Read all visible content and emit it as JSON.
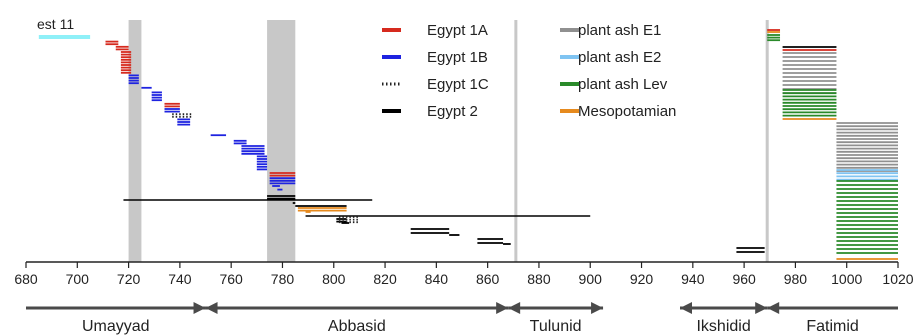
{
  "chart_data": {
    "type": "timeline-range",
    "xlabel": "",
    "ylabel": "",
    "xlim": [
      680,
      1020
    ],
    "x_ticks": [
      680,
      700,
      720,
      740,
      760,
      780,
      800,
      820,
      840,
      860,
      880,
      900,
      920,
      940,
      960,
      980,
      1000,
      1020
    ],
    "annotation": "est 11",
    "legend_position": "top-center",
    "legend": [
      {
        "name": "Egypt 1A",
        "color": "#d62a1e",
        "style": "solid"
      },
      {
        "name": "Egypt 1B",
        "color": "#1e23e0",
        "style": "solid"
      },
      {
        "name": "Egypt 1C",
        "color": "#222222",
        "style": "dotted"
      },
      {
        "name": "Egypt 2",
        "color": "#000000",
        "style": "solid"
      },
      {
        "name": "plant ash E1",
        "color": "#909090",
        "style": "solid"
      },
      {
        "name": "plant ash E2",
        "color": "#7fc4f2",
        "style": "solid"
      },
      {
        "name": "plant ash Lev",
        "color": "#2a8a2a",
        "style": "solid"
      },
      {
        "name": "Mesopotamian",
        "color": "#e68a1e",
        "style": "solid"
      }
    ],
    "colors": {
      "Egypt 1A": "#d62a1e",
      "Egypt 1B": "#1e23e0",
      "Egypt 1C": "#222222",
      "Egypt 2": "#000000",
      "plant ash E1": "#909090",
      "plant ash E2": "#7fc4f2",
      "plant ash Lev": "#2a8a2a",
      "Mesopotamian": "#e68a1e",
      "est 11": "#8ff0f8"
    },
    "shaded_ranges": [
      [
        720,
        725
      ],
      [
        774,
        785
      ]
    ],
    "reference_lines": [
      871,
      969
    ],
    "periods": [
      {
        "name": "Umayyad",
        "start": 680,
        "end": 750,
        "arrow_left": false,
        "arrow_right": true
      },
      {
        "name": "Abbasid",
        "start": 750,
        "end": 868,
        "arrow_left": true,
        "arrow_right": true
      },
      {
        "name": "Tulunid",
        "start": 868,
        "end": 905,
        "arrow_left": true,
        "arrow_right": true
      },
      {
        "name": "Ikshidid",
        "start": 935,
        "end": 969,
        "arrow_left": true,
        "arrow_right": true
      },
      {
        "name": "Fatimid",
        "start": 969,
        "end": 1020,
        "arrow_left": true,
        "arrow_right": false
      }
    ],
    "series": [
      {
        "name": "est 11",
        "start": 685,
        "end": 705,
        "count": 1,
        "group": "est 11"
      },
      {
        "name": "Egypt 1A",
        "start": 711,
        "end": 716,
        "count": 2,
        "group": "Egypt 1A"
      },
      {
        "name": "Egypt 1A",
        "start": 715,
        "end": 720,
        "count": 2,
        "group": "Egypt 1A"
      },
      {
        "name": "Egypt 1A",
        "start": 717,
        "end": 721,
        "count": 9,
        "group": "Egypt 1A"
      },
      {
        "name": "Egypt 1B",
        "start": 720,
        "end": 724,
        "count": 4,
        "group": "Egypt 1B"
      },
      {
        "name": "Egypt 1B",
        "start": 725,
        "end": 729,
        "count": 1,
        "group": "Egypt 1B"
      },
      {
        "name": "Egypt 1B",
        "start": 729,
        "end": 733,
        "count": 4,
        "group": "Egypt 1B"
      },
      {
        "name": "Egypt 1A",
        "start": 734,
        "end": 740,
        "count": 2,
        "group": "Egypt 1A"
      },
      {
        "name": "Egypt 1B",
        "start": 734,
        "end": 740,
        "count": 2,
        "group": "Egypt 1B"
      },
      {
        "name": "Egypt 1C",
        "start": 737,
        "end": 745,
        "count": 2,
        "group": "Egypt 1C"
      },
      {
        "name": "Egypt 1B",
        "start": 739,
        "end": 744,
        "count": 3,
        "group": "Egypt 1B"
      },
      {
        "name": "Egypt 1B",
        "start": 752,
        "end": 758,
        "count": 1,
        "group": "Egypt 1B"
      },
      {
        "name": "Egypt 1B",
        "start": 761,
        "end": 766,
        "count": 2,
        "group": "Egypt 1B"
      },
      {
        "name": "Egypt 1B",
        "start": 764,
        "end": 773,
        "count": 4,
        "group": "Egypt 1B"
      },
      {
        "name": "Egypt 1B",
        "start": 770,
        "end": 774,
        "count": 6,
        "group": "Egypt 1B"
      },
      {
        "name": "Egypt 1A",
        "start": 775,
        "end": 785,
        "count": 2,
        "group": "Egypt 1A"
      },
      {
        "name": "Egypt 1B",
        "start": 775,
        "end": 785,
        "count": 3,
        "group": "Egypt 1B"
      },
      {
        "name": "Egypt 1B",
        "start": 776,
        "end": 779,
        "count": 1,
        "group": "Egypt 1B"
      },
      {
        "name": "Egypt 1B",
        "start": 778,
        "end": 780,
        "count": 1,
        "group": "Egypt 1B"
      },
      {
        "name": "Egypt 2",
        "start": 718,
        "end": 815,
        "count": 1,
        "group": "Egypt 2"
      },
      {
        "name": "Egypt 2",
        "start": 774,
        "end": 785,
        "count": 2,
        "group": "Egypt 2"
      },
      {
        "name": "Egypt 2",
        "start": 784,
        "end": 785,
        "count": 1,
        "group": "Egypt 2"
      },
      {
        "name": "Egypt 2",
        "start": 785,
        "end": 805,
        "count": 1,
        "group": "Egypt 2"
      },
      {
        "name": "Mesopotamian",
        "start": 786,
        "end": 805,
        "count": 2,
        "group": "Mesopotamian"
      },
      {
        "name": "Egypt 2",
        "start": 789,
        "end": 900,
        "count": 1,
        "group": "Egypt 2"
      },
      {
        "name": "Mesopotamian",
        "start": 789,
        "end": 791,
        "count": 1,
        "group": "Mesopotamian"
      },
      {
        "name": "Egypt 2",
        "start": 801,
        "end": 805,
        "count": 2,
        "group": "Egypt 2"
      },
      {
        "name": "Egypt 1C",
        "start": 802,
        "end": 810,
        "count": 3,
        "group": "Egypt 1C"
      },
      {
        "name": "Egypt 2",
        "start": 803,
        "end": 806,
        "count": 1,
        "group": "Egypt 2"
      },
      {
        "name": "Egypt 2",
        "start": 830,
        "end": 845,
        "count": 2,
        "group": "Egypt 2"
      },
      {
        "name": "Egypt 2",
        "start": 845,
        "end": 849,
        "count": 1,
        "group": "Egypt 2"
      },
      {
        "name": "Egypt 2",
        "start": 856,
        "end": 866,
        "count": 2,
        "group": "Egypt 2"
      },
      {
        "name": "Egypt 2",
        "start": 866,
        "end": 869,
        "count": 1,
        "group": "Egypt 2"
      },
      {
        "name": "Egypt 2",
        "start": 957,
        "end": 968,
        "count": 2,
        "group": "Egypt 2"
      },
      {
        "name": "Egypt 1A",
        "start": 969,
        "end": 974,
        "count": 1,
        "group": "Egypt 1A"
      },
      {
        "name": "Mesopotamian",
        "start": 969,
        "end": 974,
        "count": 1,
        "group": "Mesopotamian"
      },
      {
        "name": "plant ash Lev",
        "start": 969,
        "end": 974,
        "count": 3,
        "group": "plant ash Lev"
      },
      {
        "name": "Egypt 2",
        "start": 975,
        "end": 996,
        "count": 1,
        "group": "Egypt 2"
      },
      {
        "name": "Egypt 1A",
        "start": 975,
        "end": 996,
        "count": 1,
        "group": "Egypt 1A"
      },
      {
        "name": "plant ash E1",
        "start": 975,
        "end": 996,
        "count": 11,
        "group": "plant ash E1"
      },
      {
        "name": "plant ash Lev",
        "start": 975,
        "end": 996,
        "count": 9,
        "group": "plant ash Lev"
      },
      {
        "name": "Mesopotamian",
        "start": 975,
        "end": 996,
        "count": 1,
        "group": "Mesopotamian"
      },
      {
        "name": "plant ash E1",
        "start": 996,
        "end": 1020,
        "count": 16,
        "group": "plant ash E1"
      },
      {
        "name": "plant ash E2",
        "start": 996,
        "end": 1020,
        "count": 4,
        "group": "plant ash E2"
      },
      {
        "name": "plant ash Lev",
        "start": 996,
        "end": 1020,
        "count": 19,
        "group": "plant ash Lev"
      },
      {
        "name": "Mesopotamian",
        "start": 996,
        "end": 1020,
        "count": 1,
        "group": "Mesopotamian"
      }
    ]
  }
}
